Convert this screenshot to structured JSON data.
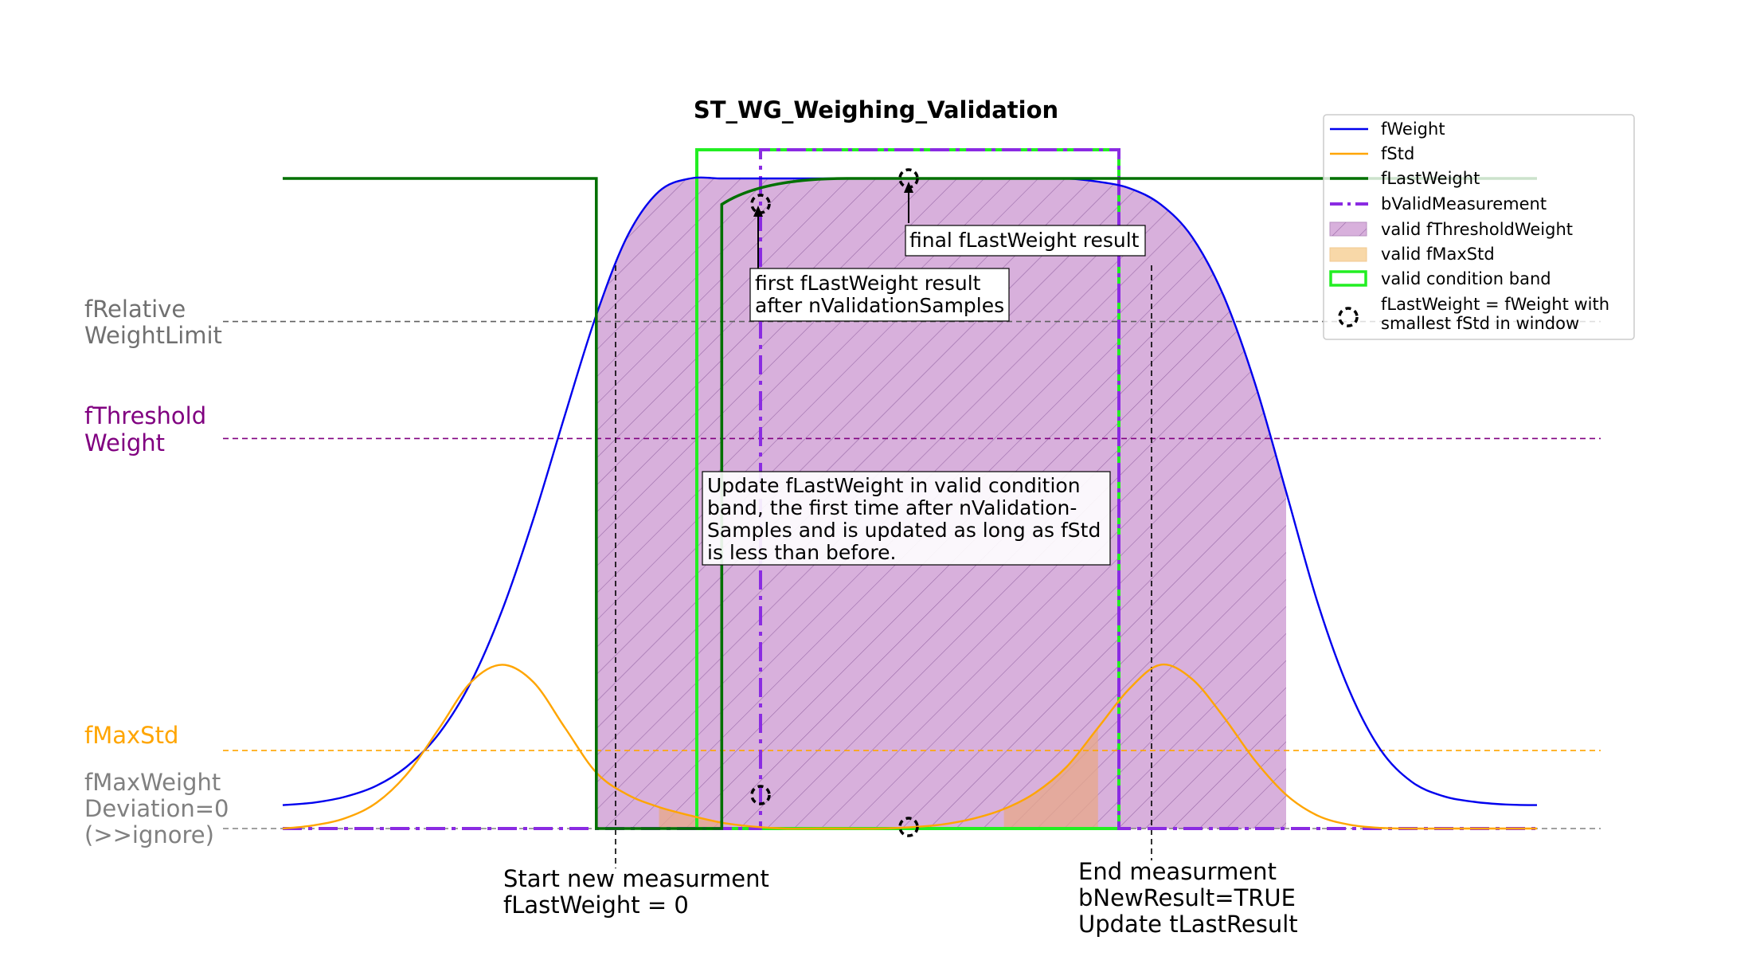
{
  "chart_data": {
    "type": "line",
    "title": "ST_WG_Weighing_Validation",
    "xlabel": "",
    "ylabel": "",
    "grid": false,
    "xlim": [
      0,
      10
    ],
    "ylim": [
      -0.05,
      1.05
    ],
    "x_samples": [
      0,
      0.25,
      0.5,
      0.75,
      1,
      1.25,
      1.5,
      1.75,
      2,
      2.25,
      2.5,
      2.75,
      3,
      3.25,
      3.5,
      3.75,
      4,
      4.25,
      4.5,
      4.75,
      5,
      5.25,
      5.5,
      5.75,
      6,
      6.25,
      6.5,
      6.75,
      7,
      7.25,
      7.5,
      7.75,
      8,
      8.25,
      8.5,
      8.75,
      9,
      9.25,
      9.5,
      9.75,
      10
    ],
    "series": [
      {
        "name": "fWeight",
        "color": "#0000ee",
        "style": "solid",
        "values": [
          0.036,
          0.04,
          0.049,
          0.066,
          0.097,
          0.147,
          0.225,
          0.336,
          0.477,
          0.636,
          0.79,
          0.912,
          0.98,
          1.0,
          1.0,
          1.0,
          1.0,
          1.0,
          1.0,
          1.0,
          1.0,
          1.0,
          1.0,
          1.0,
          1.0,
          1.0,
          0.995,
          0.985,
          0.96,
          0.91,
          0.82,
          0.686,
          0.518,
          0.348,
          0.214,
          0.122,
          0.072,
          0.05,
          0.041,
          0.037,
          0.036
        ]
      },
      {
        "name": "fStd",
        "color": "#ffa500",
        "style": "solid",
        "values": [
          0.0,
          0.005,
          0.016,
          0.04,
          0.086,
          0.155,
          0.225,
          0.252,
          0.225,
          0.155,
          0.086,
          0.052,
          0.033,
          0.02,
          0.009,
          0.003,
          0.0,
          0.0,
          0.0,
          0.0,
          0.002,
          0.006,
          0.015,
          0.03,
          0.055,
          0.095,
          0.155,
          0.215,
          0.252,
          0.23,
          0.172,
          0.105,
          0.052,
          0.02,
          0.006,
          0.001,
          0.0,
          0.0,
          0.0,
          0.0,
          0.0
        ]
      },
      {
        "name": "fLastWeight",
        "color": "#007000",
        "style": "solid",
        "values": [
          1.0,
          1.0,
          1.0,
          1.0,
          1.0,
          1.0,
          1.0,
          1.0,
          1.0,
          1.0,
          0.0,
          0.0,
          0.0,
          0.0,
          0.996,
          1.0,
          1.0,
          1.0,
          1.0,
          1.0,
          1.0,
          1.0,
          1.0,
          1.0,
          1.0,
          1.0,
          1.0,
          1.0,
          1.0,
          1.0,
          1.0,
          1.0,
          1.0,
          1.0,
          1.0,
          1.0,
          1.0,
          1.0,
          1.0,
          1.0,
          1.0
        ]
      },
      {
        "name": "bValidMeasurement",
        "color": "#8a2be2",
        "style": "dashdot",
        "values": [
          0,
          0,
          0,
          0,
          0,
          0,
          0,
          0,
          0,
          0,
          0,
          0,
          0,
          0,
          1,
          1,
          1,
          1,
          1,
          1,
          1,
          1,
          1,
          1,
          1,
          1,
          1,
          1,
          0,
          0,
          0,
          0,
          0,
          0,
          0,
          0,
          0,
          0,
          0,
          0,
          0
        ]
      }
    ],
    "legend": {
      "position": "top-right",
      "entries": [
        {
          "label": "fWeight",
          "kind": "line",
          "color": "#0000ee"
        },
        {
          "label": "fStd",
          "kind": "line",
          "color": "#ffa500"
        },
        {
          "label": "fLastWeight",
          "kind": "line",
          "color": "#007000"
        },
        {
          "label": "bValidMeasurement",
          "kind": "dashdot",
          "color": "#8a2be2"
        },
        {
          "label": "valid fThresholdWeight",
          "kind": "hatch",
          "color": "#d8b0dc"
        },
        {
          "label": "valid fMaxStd",
          "kind": "patch",
          "color": "#f8d8a8"
        },
        {
          "label": "valid condition band",
          "kind": "rect",
          "color": "#22ee22"
        },
        {
          "label": "fLastWeight = fWeight with\nsmallest fStd in window",
          "kind": "circle",
          "color": "#000000"
        }
      ]
    },
    "reference_lines": [
      {
        "label": "fRelative\nWeightLimit",
        "y": 0.78,
        "color": "#606060",
        "label_color": "#707070"
      },
      {
        "label": "fThreshold\nWeight",
        "y": 0.6,
        "color": "#800080",
        "label_color": "#800080"
      },
      {
        "label": "fMaxStd",
        "y": 0.12,
        "color": "#ffa500",
        "label_color": "#ffa500"
      },
      {
        "label": "fMaxWeight\nDeviation=0\n(>>ignore)",
        "y": 0.0,
        "color": "#808080",
        "label_color": "#808080"
      }
    ],
    "annotations": {
      "first_result": "first fLastWeight result\nafter nValidationSamples",
      "final_result": "final fLastWeight result",
      "update_note": "Update fLastWeight in valid condition\nband, the first time after nValidation-\nSamples and is updated as long as fStd\nis less than before.",
      "start_label": "Start new measurment\nfLastWeight = 0",
      "end_label": "End measurment\nbNewResult=TRUE\nUpdate tLastResult"
    }
  }
}
